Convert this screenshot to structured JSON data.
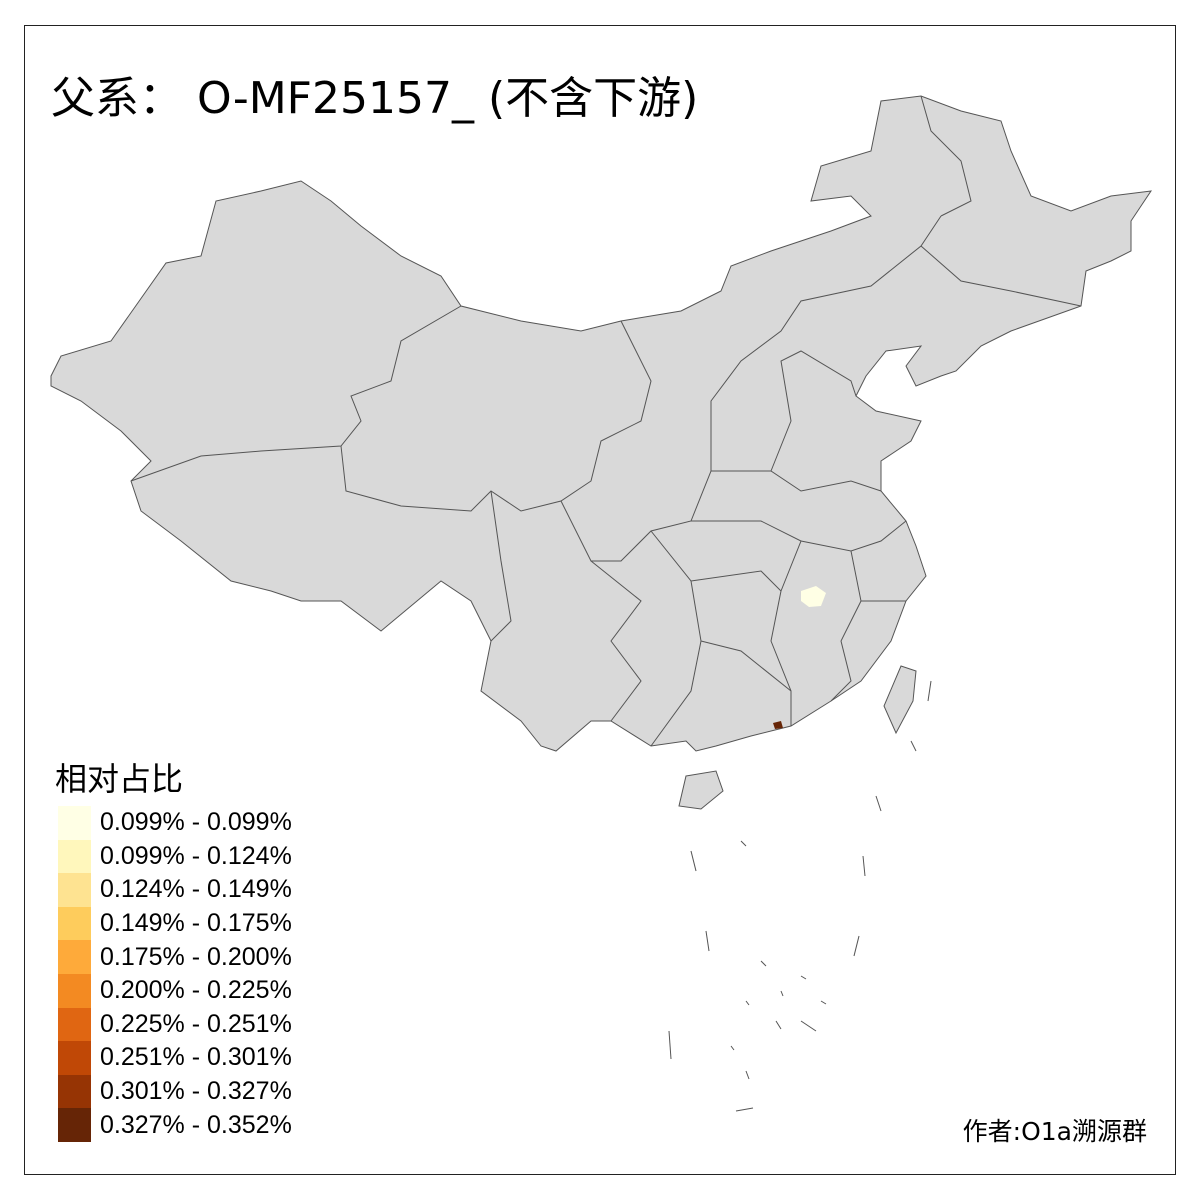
{
  "title": "父系： O-MF25157_ (不含下游)",
  "legend": {
    "title": "相对占比",
    "items": [
      {
        "label": "0.099% - 0.099%",
        "color": "#FFFFE5"
      },
      {
        "label": "0.099% - 0.124%",
        "color": "#FFF7BC"
      },
      {
        "label": "0.124% - 0.149%",
        "color": "#FEE391"
      },
      {
        "label": "0.149% - 0.175%",
        "color": "#FECC5C"
      },
      {
        "label": "0.175% - 0.200%",
        "color": "#FEAA3A"
      },
      {
        "label": "0.200% - 0.225%",
        "color": "#F38A22"
      },
      {
        "label": "0.225% - 0.251%",
        "color": "#E06612"
      },
      {
        "label": "0.251% - 0.301%",
        "color": "#C04806"
      },
      {
        "label": "0.301% - 0.327%",
        "color": "#963404"
      },
      {
        "label": "0.327% - 0.352%",
        "color": "#662506"
      }
    ]
  },
  "author": "作者:O1a溯源群",
  "map": {
    "base_color": "#D9D9D9",
    "border_color": "#555555",
    "highlighted_regions": [
      {
        "bin": 0,
        "color": "#FFFFE5"
      },
      {
        "bin": 9,
        "color": "#662506"
      }
    ]
  }
}
